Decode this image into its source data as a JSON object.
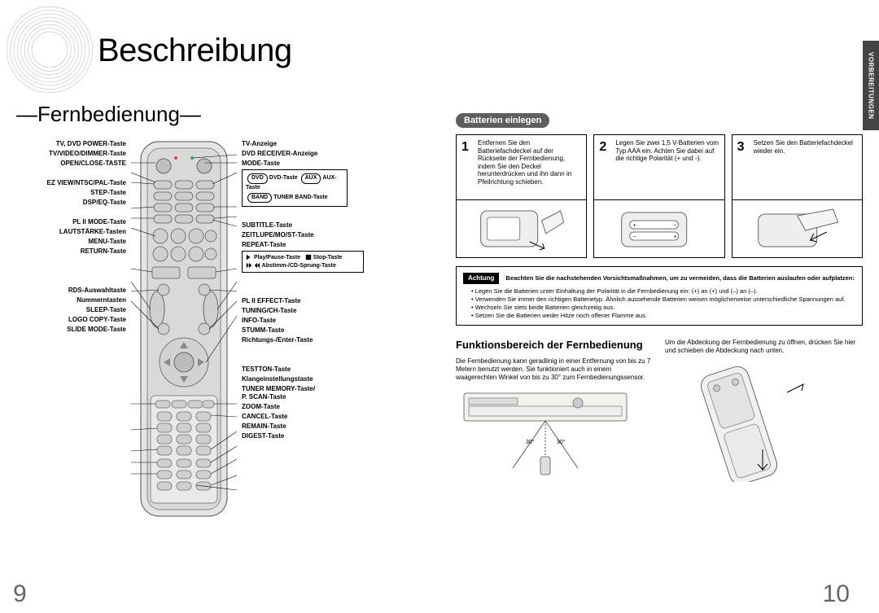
{
  "chapter_tab": "VORBEREITUNGEN",
  "title": "Beschreibung",
  "subtitle": "—Fernbedienung—",
  "page_left": "9",
  "page_right": "10",
  "remote_labels_left": [
    "TV, DVD POWER-Taste",
    "TV/VIDEO/DIMMER-Taste",
    "OPEN/CLOSE-TASTE",
    "",
    "EZ VIEW/NTSC/PAL-Taste",
    "STEP-Taste",
    "DSP/EQ-Taste",
    "",
    "     PL II MODE-Taste",
    "LAUTSTÄRKE-Tasten",
    "MENU-Taste",
    "RETURN-Taste",
    "",
    "",
    "",
    "RDS-Auswahltaste",
    "Nummerntasten",
    "SLEEP-Taste",
    "LOGO COPY-Taste",
    "SLIDE MODE-Taste"
  ],
  "remote_labels_right": [
    "TV-Anzeige",
    "DVD RECEIVER-Anzeige",
    "MODE-Taste",
    "",
    "SUBTITLE-Taste",
    "ZEITLUPE/MO/ST-Taste",
    "REPEAT-Taste",
    "",
    "",
    "     PL II EFFECT-Taste",
    "TUNING/CH-Taste",
    "INFO-Taste",
    "STUMM-Taste",
    "Richtungs-/Enter-Taste",
    "",
    "",
    "TESTTON-Taste",
    "Klangeinstellungstaste",
    "TUNER MEMORY-Taste/\nP. SCAN-Taste",
    "ZOOM-Taste",
    "CANCEL-Taste",
    "REMAIN-Taste",
    "DIGEST-Taste"
  ],
  "mode_box": {
    "dvd": "DVD-Taste",
    "aux": "AUX-Taste",
    "tuner": "TUNER BAND-Taste"
  },
  "transport_box": {
    "play": "Play/Pause-Taste",
    "stop": "Stop-Taste",
    "skip": "Abstimm-/CD-Sprung-Taste"
  },
  "battery_section": "Batterien einlegen",
  "steps": [
    {
      "n": "1",
      "text": "Entfernen Sie den Batteriefachdeckel auf der Rückseite der Fernbedienung, indem Sie den Deckel herunterdrücken und ihn dann in Pfeilrichtung schieben."
    },
    {
      "n": "2",
      "text": "Legen Sie zwei 1,5 V-Batterien vom Typ AAA ein. Achten Sie dabei auf die richtige Polarität (+ und -)."
    },
    {
      "n": "3",
      "text": "Setzen Sie den Batteriefachdeckel wieder ein."
    }
  ],
  "caution_label": "Achtung",
  "caution_head": "Beachten Sie die nachstehenden Vorsichtsmaßnahmen, um zu vermeiden, dass die Batterien auslaufen oder aufplatzen:",
  "caution_items": [
    "Legen Sie die Batterien unter Einhaltung der Polarität in die Fernbedienung ein: (+) an (+) und (–) an (–).",
    "Verwenden Sie immer den richtigen Batterietyp. Ähnlich aussehende Batterien weisen möglicherweise unterschiedliche Spannungen auf.",
    "Wechseln Sie stets beide Batterien gleichzeitig aus.",
    "Setzen Sie die Batterien weder Hitze noch offener Flamme aus."
  ],
  "range_title": "Funktionsbereich der Fernbedienung",
  "range_left_text": "Die Fernbedienung kann geradlinig in einer Entfernung von bis zu 7 Metern benutzt werden. Sie funktioniert auch in einem waagerechten Winkel von bis zu 30° zum Fernbedienungssensor.",
  "range_right_text": "Um die Abdeckung der Fernbedienung zu öffnen, drücken Sie hier und schieben die Abdeckung nach unten.",
  "colors": {
    "tab_bg": "#444444",
    "pill_bg": "#5e5e5e",
    "page_num": "#666666"
  }
}
